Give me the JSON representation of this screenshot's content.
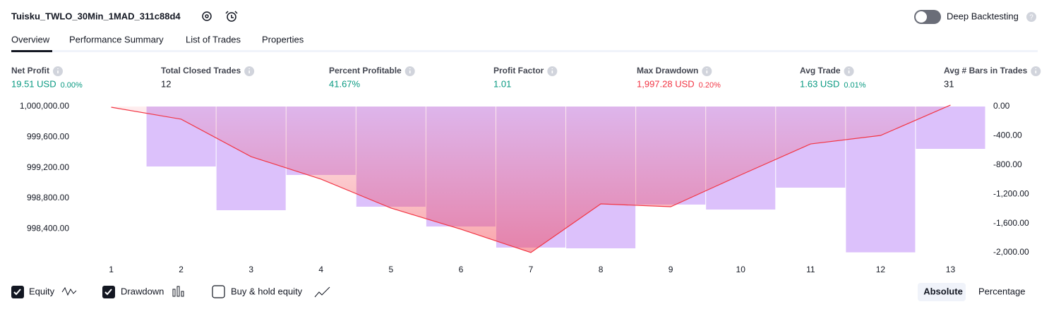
{
  "header": {
    "title": "Tuisku_TWLO_30Min_1MAD_311c88d4",
    "deep_backtesting": "Deep Backtesting"
  },
  "tabs": [
    "Overview",
    "Performance Summary",
    "List of Trades",
    "Properties"
  ],
  "metrics": [
    {
      "label": "Net Profit",
      "value": "19.51 USD",
      "percent": "0.00%",
      "color": "#089981"
    },
    {
      "label": "Total Closed Trades",
      "value": "12",
      "color": "#131722"
    },
    {
      "label": "Percent Profitable",
      "value": "41.67%",
      "color": "#089981"
    },
    {
      "label": "Profit Factor",
      "value": "1.01",
      "color": "#089981"
    },
    {
      "label": "Max Drawdown",
      "value": "1,997.28 USD",
      "percent": "0.20%",
      "color": "#f23645"
    },
    {
      "label": "Avg Trade",
      "value": "1.63 USD",
      "percent": "0.01%",
      "color": "#089981"
    },
    {
      "label": "Avg # Bars in Trades",
      "value": "31",
      "color": "#131722"
    }
  ],
  "chart_data": {
    "type": "combo",
    "categories": [
      "1",
      "2",
      "3",
      "4",
      "5",
      "6",
      "7",
      "8",
      "9",
      "10",
      "11",
      "12",
      "13"
    ],
    "series": [
      {
        "name": "Equity",
        "type": "line",
        "axis": "y",
        "color": "#f23645",
        "values": [
          999991,
          999834,
          999344,
          999049,
          998670,
          998393,
          998088,
          998725,
          998688,
          999104,
          999510,
          999621,
          1000019.51
        ]
      },
      {
        "name": "Drawdown",
        "type": "bar",
        "axis": "y2",
        "color": "#dcc1fb",
        "values": [
          0,
          -821,
          -1420,
          -937,
          -1372,
          -1643,
          -1932,
          -1942,
          -1343,
          -1411,
          -1111,
          -1997,
          -580
        ]
      }
    ],
    "ylim": [
      997977,
      1000000
    ],
    "yticks": [
      {
        "value": 1000000,
        "label": "1,000,000.00"
      },
      {
        "value": 999600,
        "label": "999,600.00"
      },
      {
        "value": 999200,
        "label": "999,200.00"
      },
      {
        "value": 998800,
        "label": "998,800.00"
      },
      {
        "value": 998400,
        "label": "998,400.00"
      }
    ],
    "y2lim": [
      -2116,
      0
    ],
    "y2ticks": [
      {
        "value": 0,
        "label": "0.00"
      },
      {
        "value": -400,
        "label": "-400.00"
      },
      {
        "value": -800,
        "label": "-800.00"
      },
      {
        "value": -1200,
        "label": "-1,200.00"
      },
      {
        "value": -1600,
        "label": "-1,600.00"
      },
      {
        "value": -2000,
        "label": "-2,000.00"
      }
    ]
  },
  "legend_extra": "Buy & hold equity",
  "buttons": [
    "Absolute",
    "Percentage"
  ]
}
